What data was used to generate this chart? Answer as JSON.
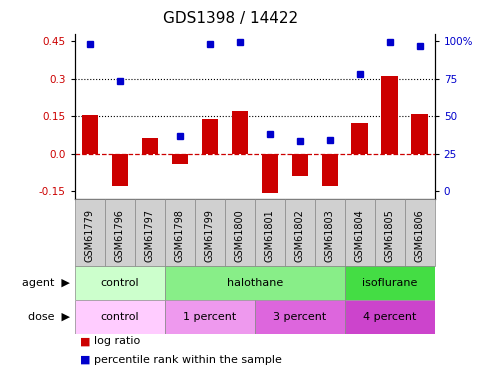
{
  "title": "GDS1398 / 14422",
  "samples": [
    "GSM61779",
    "GSM61796",
    "GSM61797",
    "GSM61798",
    "GSM61799",
    "GSM61800",
    "GSM61801",
    "GSM61802",
    "GSM61803",
    "GSM61804",
    "GSM61805",
    "GSM61806"
  ],
  "log_ratio": [
    0.155,
    -0.13,
    0.065,
    -0.04,
    0.14,
    0.17,
    -0.155,
    -0.09,
    -0.13,
    0.125,
    0.31,
    0.16
  ],
  "percentile_rank_values": [
    0.44,
    0.29,
    null,
    0.07,
    0.44,
    0.445,
    0.08,
    0.05,
    0.055,
    0.32,
    0.445,
    0.43
  ],
  "ylim": [
    -0.18,
    0.48
  ],
  "yticks_left": [
    -0.15,
    0.0,
    0.15,
    0.3,
    0.45
  ],
  "yticks_right": [
    0,
    25,
    50,
    75,
    100
  ],
  "yticks_right_pos": [
    -0.15,
    0.0,
    0.15,
    0.3,
    0.45
  ],
  "hlines": [
    0.15,
    0.3
  ],
  "bar_color": "#cc0000",
  "dot_color": "#0000cc",
  "zero_line_color": "#cc0000",
  "agent_groups": [
    {
      "label": "control",
      "start": 0,
      "end": 3,
      "color": "#ccffcc"
    },
    {
      "label": "halothane",
      "start": 3,
      "end": 9,
      "color": "#88ee88"
    },
    {
      "label": "isoflurane",
      "start": 9,
      "end": 12,
      "color": "#44dd44"
    }
  ],
  "dose_groups": [
    {
      "label": "control",
      "start": 0,
      "end": 3,
      "color": "#ffccff"
    },
    {
      "label": "1 percent",
      "start": 3,
      "end": 6,
      "color": "#ee99ee"
    },
    {
      "label": "3 percent",
      "start": 6,
      "end": 9,
      "color": "#dd66dd"
    },
    {
      "label": "4 percent",
      "start": 9,
      "end": 12,
      "color": "#cc44cc"
    }
  ],
  "sample_box_color": "#d0d0d0",
  "sample_box_edge": "#888888",
  "title_fontsize": 11,
  "tick_fontsize": 7.5,
  "sample_fontsize": 7,
  "row_fontsize": 8
}
